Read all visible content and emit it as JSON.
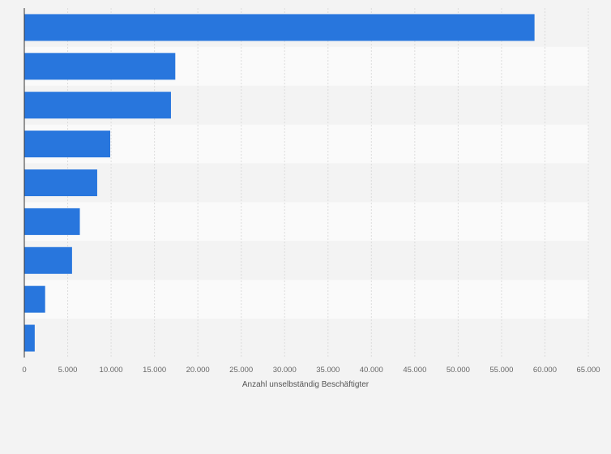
{
  "chart_data": {
    "type": "bar",
    "orientation": "horizontal",
    "title": "",
    "xlabel": "Anzahl unselbständig Beschäftigter",
    "ylabel": "",
    "categories": [
      "",
      "",
      "",
      "",
      "",
      "",
      "",
      "",
      ""
    ],
    "values": [
      58800,
      17400,
      16900,
      9900,
      8400,
      6400,
      5500,
      2400,
      1200
    ],
    "xlim": [
      0,
      65000
    ],
    "xticks": [
      0,
      5000,
      10000,
      15000,
      20000,
      25000,
      30000,
      35000,
      40000,
      45000,
      50000,
      55000,
      60000,
      65000
    ],
    "xtick_labels": [
      "0",
      "5.000",
      "10.000",
      "15.000",
      "20.000",
      "25.000",
      "30.000",
      "35.000",
      "40.000",
      "45.000",
      "50.000",
      "55.000",
      "60.000",
      "65.000"
    ],
    "grid": true,
    "bar_color": "#2876dd"
  }
}
